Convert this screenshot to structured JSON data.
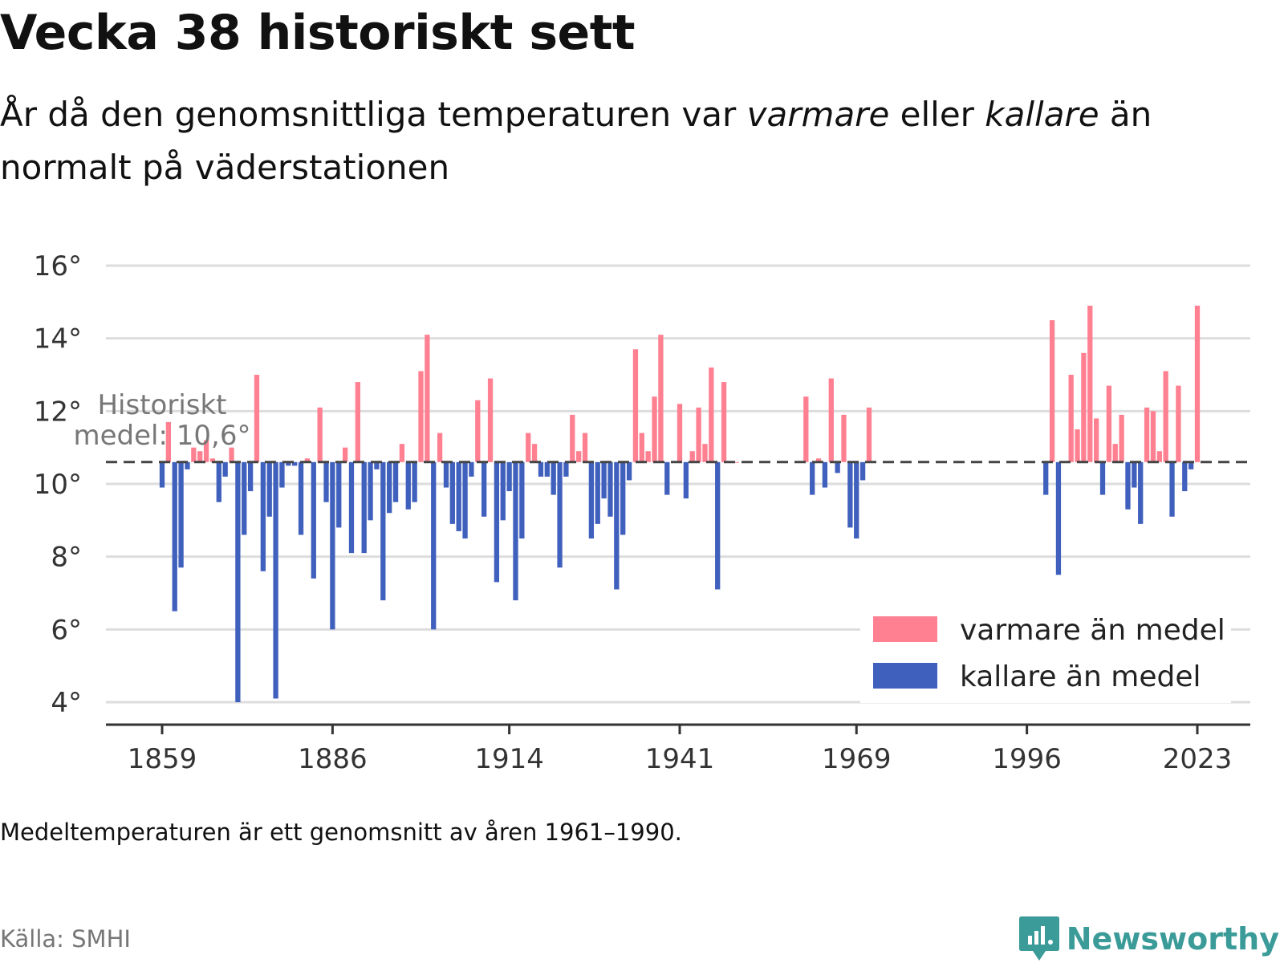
{
  "title": "Vecka 38 historiskt sett",
  "subtitle": {
    "part1": "År då den genomsnittliga temperaturen var ",
    "warm_word": "varmare",
    "part2": " eller ",
    "cold_word": "kallare",
    "part3": " än normalt på väderstationen"
  },
  "note": "Medeltemperaturen är ett genomsnitt av åren 1961–1990.",
  "source": "Källa: SMHI",
  "brand": {
    "name": "Newsworthy",
    "icon": "newsworthy-logo-icon",
    "color": "#3a9b98"
  },
  "colors": {
    "warm": "#ff8091",
    "cold": "#4060bd",
    "grid": "#dddddd",
    "axis": "#333333",
    "mean_line": "#444444"
  },
  "chart_data": {
    "type": "bar",
    "ylim": [
      4,
      16
    ],
    "yticks": [
      4,
      6,
      8,
      10,
      12,
      14,
      16
    ],
    "ytick_suffix": "°",
    "xlim": [
      1859,
      2023
    ],
    "xticks": [
      1859,
      1886,
      1914,
      1941,
      1969,
      1996,
      2023
    ],
    "baseline": 10.6,
    "baseline_label": [
      "Historiskt",
      "medel: 10,6°"
    ],
    "legend": {
      "position": "bottom-right",
      "items": [
        {
          "label": "varmare än medel",
          "color": "#ff8091"
        },
        {
          "label": "kallare än medel",
          "color": "#4060bd"
        }
      ]
    },
    "x": [
      1859,
      1860,
      1861,
      1862,
      1863,
      1864,
      1865,
      1866,
      1867,
      1868,
      1869,
      1870,
      1871,
      1872,
      1873,
      1874,
      1875,
      1876,
      1877,
      1878,
      1879,
      1880,
      1881,
      1882,
      1883,
      1884,
      1885,
      1886,
      1887,
      1888,
      1889,
      1890,
      1891,
      1892,
      1893,
      1894,
      1895,
      1896,
      1897,
      1898,
      1899,
      1900,
      1901,
      1902,
      1903,
      1904,
      1905,
      1906,
      1907,
      1908,
      1909,
      1910,
      1911,
      1912,
      1913,
      1914,
      1915,
      1916,
      1917,
      1918,
      1919,
      1920,
      1921,
      1922,
      1923,
      1924,
      1925,
      1926,
      1927,
      1928,
      1929,
      1930,
      1931,
      1932,
      1933,
      1934,
      1935,
      1936,
      1937,
      1938,
      1939,
      1940,
      1941,
      1942,
      1943,
      1944,
      1945,
      1946,
      1947,
      1948,
      1949,
      1950,
      1961,
      1962,
      1963,
      1964,
      1965,
      1966,
      1967,
      1968,
      1969,
      1970,
      1971,
      1999,
      2000,
      2001,
      2002,
      2003,
      2004,
      2005,
      2006,
      2007,
      2008,
      2009,
      2010,
      2011,
      2012,
      2013,
      2014,
      2015,
      2016,
      2017,
      2018,
      2019,
      2020,
      2021,
      2022,
      2023
    ],
    "values": [
      9.9,
      11.7,
      6.5,
      7.7,
      10.4,
      11.0,
      10.9,
      11.2,
      10.7,
      9.5,
      10.2,
      11.0,
      4.0,
      8.6,
      9.8,
      13.0,
      7.6,
      9.1,
      4.1,
      9.9,
      10.5,
      10.5,
      8.6,
      10.7,
      7.4,
      12.1,
      9.5,
      6.0,
      8.8,
      11.0,
      8.1,
      12.8,
      8.1,
      9.0,
      10.4,
      6.8,
      9.2,
      9.5,
      11.1,
      9.3,
      9.5,
      13.1,
      14.1,
      6.0,
      11.4,
      9.9,
      8.9,
      8.7,
      8.5,
      10.2,
      12.3,
      9.1,
      12.9,
      7.3,
      9.0,
      9.8,
      6.8,
      8.5,
      11.4,
      11.1,
      10.2,
      10.2,
      9.7,
      7.7,
      10.2,
      11.9,
      10.9,
      11.4,
      8.5,
      8.9,
      9.6,
      9.1,
      7.1,
      8.6,
      10.1,
      13.7,
      11.4,
      10.9,
      12.4,
      14.1,
      9.7,
      10.6,
      12.2,
      9.6,
      10.9,
      12.1,
      11.1,
      13.2,
      7.1,
      12.8,
      10.6,
      10.6,
      12.4,
      9.7,
      10.7,
      9.9,
      12.9,
      10.3,
      11.9,
      8.8,
      8.5,
      10.1,
      12.1,
      9.7,
      14.5,
      7.5,
      10.6,
      13.0,
      11.5,
      13.6,
      14.9,
      11.8,
      9.7,
      12.7,
      11.1,
      11.9,
      9.3,
      9.9,
      8.9,
      12.1,
      12.0,
      10.9,
      13.1,
      9.1,
      12.7,
      9.8,
      10.4,
      14.9
    ]
  }
}
